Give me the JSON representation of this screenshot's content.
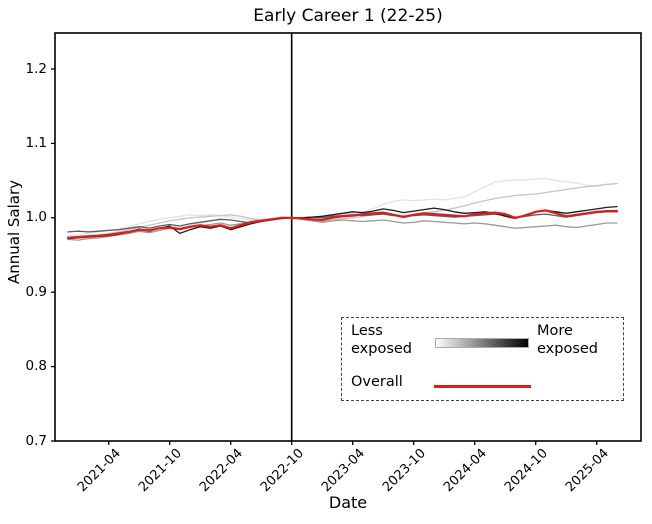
{
  "chart_data": {
    "type": "line",
    "title": "Early Career 1 (22-25)",
    "xlabel": "Date",
    "ylabel": "Annual Salary",
    "ylim": [
      0.7,
      1.25
    ],
    "grid": false,
    "y_ticks": [
      0.7,
      0.8,
      0.9,
      1.0,
      1.1,
      1.2
    ],
    "x_tick_labels": [
      "2021-04",
      "2021-10",
      "2022-04",
      "2022-10",
      "2023-04",
      "2023-10",
      "2024-04",
      "2024-10",
      "2025-04"
    ],
    "x_tick_month_index": [
      4,
      10,
      16,
      22,
      28,
      34,
      40,
      46,
      52
    ],
    "x_start_month": "2020-12",
    "x_interval": "monthly",
    "vline_month_index": 22,
    "vline_color": "#000000",
    "legend": {
      "position": "lower right",
      "border_style": "dashed",
      "less_label": "Less exposed",
      "more_label": "More exposed",
      "overall_label": "Overall",
      "gradient_start": "#ffffff",
      "gradient_end": "#000000",
      "overall_color": "#df1b1b"
    },
    "series": [
      {
        "name": "exposure-q1-least-exposed",
        "color": "#e2e2e2",
        "width": 1.3,
        "values": [
          0.976,
          0.977,
          0.979,
          0.981,
          0.983,
          0.985,
          0.988,
          0.992,
          0.995,
          0.998,
          1.0,
          1.002,
          1.004,
          1.003,
          1.004,
          1.003,
          1.001,
          0.999,
          0.997,
          0.998,
          0.999,
          1.0,
          1.0,
          1.0,
          1.001,
          1.002,
          1.003,
          1.005,
          1.006,
          1.008,
          1.012,
          1.018,
          1.022,
          1.024,
          1.023,
          1.024,
          1.025,
          1.024,
          1.026,
          1.028,
          1.035,
          1.042,
          1.048,
          1.05,
          1.051,
          1.051,
          1.052,
          1.053,
          1.05,
          1.048,
          1.047,
          1.044,
          1.043,
          1.045,
          1.046
        ]
      },
      {
        "name": "exposure-q2",
        "color": "#c4c4c4",
        "width": 1.3,
        "values": [
          0.974,
          0.975,
          0.976,
          0.977,
          0.979,
          0.981,
          0.984,
          0.987,
          0.99,
          0.993,
          0.996,
          0.998,
          1.0,
          1.001,
          1.002,
          1.003,
          1.004,
          1.002,
          0.999,
          0.997,
          0.998,
          0.999,
          1.0,
          0.999,
          0.997,
          0.995,
          0.997,
          0.999,
          1.0,
          1.002,
          1.004,
          1.006,
          1.005,
          1.003,
          1.005,
          1.007,
          1.008,
          1.01,
          1.013,
          1.016,
          1.02,
          1.023,
          1.026,
          1.028,
          1.03,
          1.031,
          1.032,
          1.034,
          1.036,
          1.038,
          1.04,
          1.042,
          1.043,
          1.045,
          1.046
        ]
      },
      {
        "name": "exposure-q3",
        "color": "#9a9a9a",
        "width": 1.3,
        "values": [
          0.971,
          0.97,
          0.972,
          0.973,
          0.975,
          0.977,
          0.979,
          0.982,
          0.98,
          0.983,
          0.986,
          0.984,
          0.987,
          0.989,
          0.991,
          0.993,
          0.99,
          0.992,
          0.995,
          0.997,
          0.998,
          0.999,
          1.0,
          0.998,
          0.996,
          0.994,
          0.996,
          0.997,
          0.996,
          0.995,
          0.996,
          0.997,
          0.995,
          0.993,
          0.994,
          0.996,
          0.995,
          0.994,
          0.993,
          0.992,
          0.993,
          0.992,
          0.99,
          0.988,
          0.986,
          0.987,
          0.988,
          0.989,
          0.99,
          0.988,
          0.987,
          0.989,
          0.991,
          0.993,
          0.993
        ]
      },
      {
        "name": "exposure-q4",
        "color": "#5c5c5c",
        "width": 1.3,
        "values": [
          0.981,
          0.982,
          0.981,
          0.982,
          0.983,
          0.984,
          0.986,
          0.988,
          0.986,
          0.989,
          0.991,
          0.989,
          0.992,
          0.994,
          0.996,
          0.998,
          0.997,
          0.995,
          0.993,
          0.995,
          0.997,
          0.999,
          1.0,
          1.0,
          1.001,
          1.0,
          1.002,
          1.003,
          1.004,
          1.003,
          1.004,
          1.005,
          1.003,
          1.002,
          1.003,
          1.004,
          1.003,
          1.002,
          1.001,
          1.002,
          1.003,
          1.004,
          1.005,
          1.003,
          1.001,
          1.002,
          1.004,
          1.005,
          1.003,
          1.001,
          1.003,
          1.005,
          1.007,
          1.008,
          1.008
        ]
      },
      {
        "name": "exposure-q5-most-exposed",
        "color": "#1b1b1b",
        "width": 1.3,
        "values": [
          0.972,
          0.973,
          0.974,
          0.975,
          0.976,
          0.978,
          0.981,
          0.985,
          0.982,
          0.986,
          0.989,
          0.979,
          0.984,
          0.988,
          0.986,
          0.989,
          0.984,
          0.988,
          0.992,
          0.995,
          0.997,
          0.999,
          1.0,
          1.0,
          1.001,
          1.002,
          1.004,
          1.006,
          1.008,
          1.007,
          1.009,
          1.012,
          1.01,
          1.007,
          1.009,
          1.011,
          1.013,
          1.011,
          1.008,
          1.006,
          1.007,
          1.008,
          1.006,
          1.002,
          0.999,
          1.004,
          1.008,
          1.01,
          1.008,
          1.006,
          1.008,
          1.01,
          1.012,
          1.014,
          1.015
        ]
      },
      {
        "name": "overall",
        "color": "#df1b1b",
        "width": 2.2,
        "values": [
          0.973,
          0.974,
          0.975,
          0.976,
          0.977,
          0.979,
          0.981,
          0.984,
          0.983,
          0.986,
          0.987,
          0.985,
          0.988,
          0.99,
          0.988,
          0.99,
          0.986,
          0.99,
          0.994,
          0.996,
          0.998,
          1.0,
          1.0,
          0.999,
          0.998,
          0.997,
          1.0,
          1.002,
          1.003,
          1.005,
          1.006,
          1.007,
          1.004,
          1.001,
          1.004,
          1.006,
          1.005,
          1.004,
          1.003,
          1.002,
          1.005,
          1.006,
          1.007,
          1.005,
          1.0,
          1.003,
          1.008,
          1.01,
          1.006,
          1.002,
          1.004,
          1.006,
          1.008,
          1.009,
          1.009
        ]
      }
    ]
  }
}
